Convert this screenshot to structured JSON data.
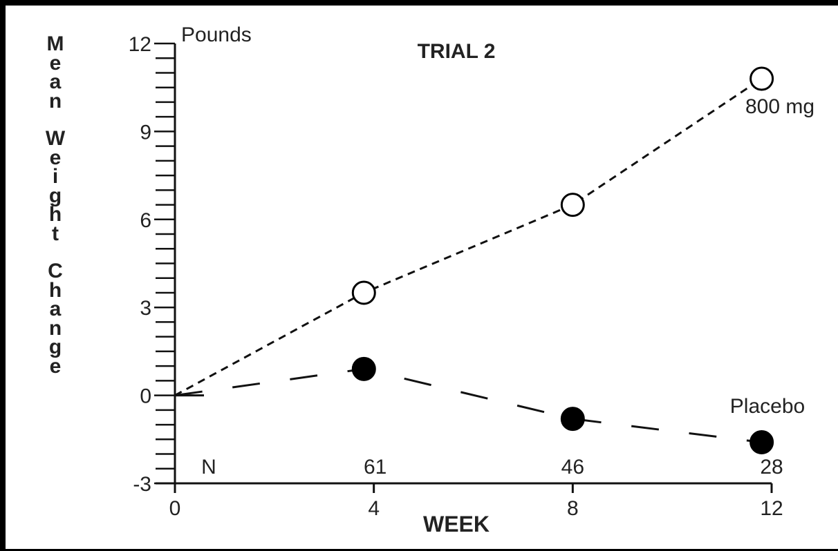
{
  "chart_data": {
    "type": "line",
    "title": "TRIAL 2",
    "xlabel": "WEEK",
    "ylabel": "Mean Weight Change",
    "yunit": "Pounds",
    "xlim": [
      0,
      12
    ],
    "ylim": [
      -3,
      12
    ],
    "xticks": [
      0,
      4,
      8,
      12
    ],
    "yticks": [
      -3,
      0,
      3,
      6,
      9,
      12
    ],
    "grid": false,
    "series": [
      {
        "name": "800 mg",
        "marker": "open-circle",
        "line": "short-dash",
        "x": [
          0,
          3.8,
          8,
          11.8
        ],
        "y": [
          0,
          3.5,
          6.5,
          10.8
        ]
      },
      {
        "name": "Placebo",
        "marker": "filled-circle",
        "line": "long-dash",
        "x": [
          0,
          3.8,
          8,
          11.8
        ],
        "y": [
          0,
          0.9,
          -0.8,
          -1.6
        ]
      }
    ],
    "n_row": {
      "label": "N",
      "x": [
        4,
        8,
        12
      ],
      "values": [
        "61",
        "46",
        "28"
      ]
    }
  }
}
